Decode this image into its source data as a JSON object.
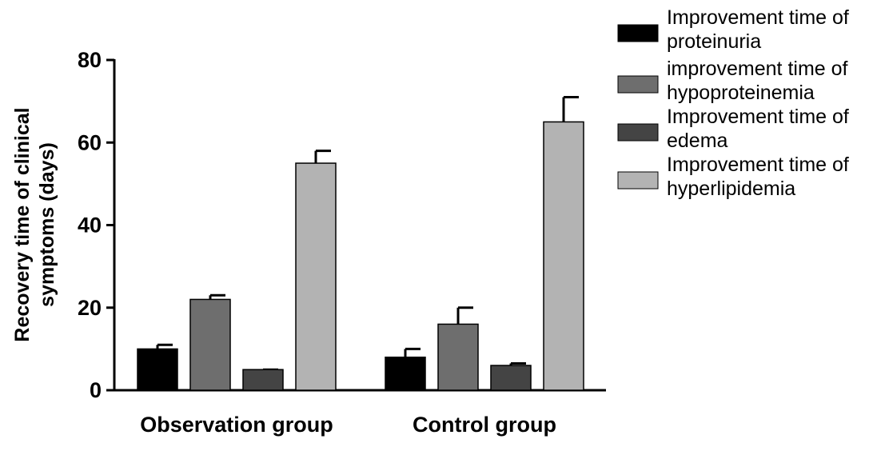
{
  "chart_data": {
    "type": "bar",
    "categories": [
      "Observation group",
      "Control group"
    ],
    "ylabel_lines": [
      "Recovery time of clinical",
      "symptoms (days)"
    ],
    "xlabel": "",
    "ylim": [
      0,
      80
    ],
    "yticks": [
      0,
      20,
      40,
      60,
      80
    ],
    "legend_position": "right",
    "series": [
      {
        "name_lines": [
          "Improvement time of",
          "proteinuria"
        ],
        "color": "#000000",
        "values": [
          10,
          8
        ],
        "errors": [
          1,
          2
        ]
      },
      {
        "name_lines": [
          "improvement time of",
          "hypoproteinemia"
        ],
        "color": "#6e6e6e",
        "values": [
          22,
          16
        ],
        "errors": [
          1,
          4
        ]
      },
      {
        "name_lines": [
          "Improvement time of",
          "edema"
        ],
        "color": "#444444",
        "values": [
          5,
          6
        ],
        "errors": [
          0,
          0.5
        ]
      },
      {
        "name_lines": [
          "Improvement time of",
          "hyperlipidemia"
        ],
        "color": "#b3b3b3",
        "values": [
          55,
          65
        ],
        "errors": [
          3,
          6
        ]
      }
    ]
  }
}
